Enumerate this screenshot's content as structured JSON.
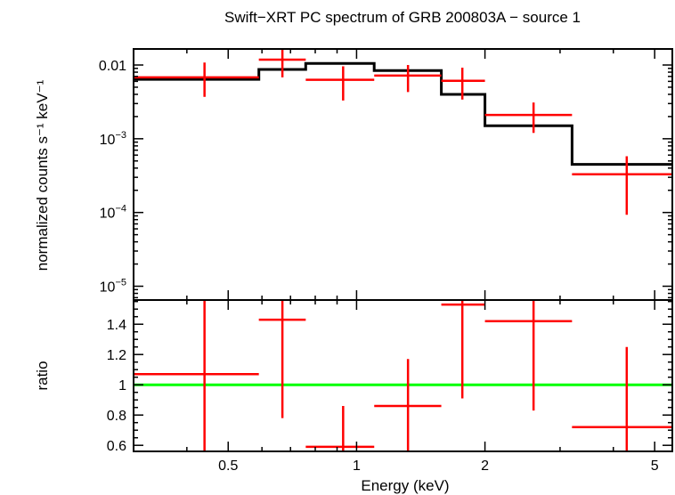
{
  "chart_data": {
    "type": "scatter",
    "title": "Swift−XRT PC spectrum of GRB 200803A − source 1",
    "xlabel": "Energy (keV)",
    "x_scale": "log",
    "xlim": [
      0.3,
      5.5
    ],
    "x_ticks": [
      {
        "value": 0.5,
        "label": "0.5"
      },
      {
        "value": 1,
        "label": "1"
      },
      {
        "value": 2,
        "label": "2"
      },
      {
        "value": 5,
        "label": "5"
      }
    ],
    "panels": [
      {
        "name": "spectrum",
        "ylabel": "normalized counts s⁻¹ keV⁻¹",
        "y_scale": "log",
        "ylim": [
          6.5e-06,
          0.0165
        ],
        "y_ticks": [
          {
            "value": 0.01,
            "label": "0.01"
          },
          {
            "value": 0.001,
            "base": "10",
            "exp": "−3"
          },
          {
            "value": 0.0001,
            "base": "10",
            "exp": "−4"
          },
          {
            "value": 1e-05,
            "base": "10",
            "exp": "−5"
          }
        ],
        "data": [
          {
            "xlo": 0.3,
            "xhi": 0.59,
            "x": 0.44,
            "y": 0.0068,
            "ylo": 0.0037,
            "yhi": 0.0108
          },
          {
            "xlo": 0.59,
            "xhi": 0.76,
            "x": 0.67,
            "y": 0.0118,
            "ylo": 0.0068,
            "yhi": 0.0165
          },
          {
            "xlo": 0.76,
            "xhi": 1.1,
            "x": 0.93,
            "y": 0.0063,
            "ylo": 0.0033,
            "yhi": 0.0096
          },
          {
            "xlo": 1.1,
            "xhi": 1.58,
            "x": 1.32,
            "y": 0.0072,
            "ylo": 0.0043,
            "yhi": 0.01
          },
          {
            "xlo": 1.58,
            "xhi": 2.0,
            "x": 1.77,
            "y": 0.0061,
            "ylo": 0.0034,
            "yhi": 0.0092
          },
          {
            "xlo": 2.0,
            "xhi": 3.2,
            "x": 2.6,
            "y": 0.0021,
            "ylo": 0.0012,
            "yhi": 0.0031
          },
          {
            "xlo": 3.2,
            "xhi": 5.5,
            "x": 4.3,
            "y": 0.00033,
            "ylo": 9.3e-05,
            "yhi": 0.00058
          }
        ],
        "model": [
          {
            "xlo": 0.3,
            "xhi": 0.59,
            "y": 0.0064
          },
          {
            "xlo": 0.59,
            "xhi": 0.76,
            "y": 0.0087
          },
          {
            "xlo": 0.76,
            "xhi": 1.1,
            "y": 0.0105
          },
          {
            "xlo": 1.1,
            "xhi": 1.58,
            "y": 0.0084
          },
          {
            "xlo": 1.58,
            "xhi": 2.0,
            "y": 0.004
          },
          {
            "xlo": 2.0,
            "xhi": 3.2,
            "y": 0.0015
          },
          {
            "xlo": 3.2,
            "xhi": 5.5,
            "y": 0.00045
          }
        ]
      },
      {
        "name": "ratio",
        "ylabel": "ratio",
        "y_scale": "linear",
        "ylim": [
          0.56,
          1.56
        ],
        "y_ticks": [
          {
            "value": 0.6,
            "label": "0.6"
          },
          {
            "value": 0.8,
            "label": "0.8"
          },
          {
            "value": 1,
            "label": "1"
          },
          {
            "value": 1.2,
            "label": "1.2"
          },
          {
            "value": 1.4,
            "label": "1.4"
          }
        ],
        "reference_line": 1,
        "data": [
          {
            "xlo": 0.3,
            "xhi": 0.59,
            "x": 0.44,
            "y": 1.07,
            "ylo": 0.56,
            "yhi": 1.56
          },
          {
            "xlo": 0.59,
            "xhi": 0.76,
            "x": 0.67,
            "y": 1.43,
            "ylo": 0.78,
            "yhi": 1.56
          },
          {
            "xlo": 0.76,
            "xhi": 1.1,
            "x": 0.93,
            "y": 0.59,
            "ylo": 0.56,
            "yhi": 0.86
          },
          {
            "xlo": 1.1,
            "xhi": 1.58,
            "x": 1.32,
            "y": 0.86,
            "ylo": 0.56,
            "yhi": 1.17
          },
          {
            "xlo": 1.58,
            "xhi": 2.0,
            "x": 1.77,
            "y": 1.53,
            "ylo": 0.91,
            "yhi": 1.56
          },
          {
            "xlo": 2.0,
            "xhi": 3.2,
            "x": 2.6,
            "y": 1.42,
            "ylo": 0.83,
            "yhi": 1.56
          },
          {
            "xlo": 3.2,
            "xhi": 5.5,
            "x": 4.3,
            "y": 0.72,
            "ylo": 0.56,
            "yhi": 1.25
          }
        ]
      }
    ],
    "colors": {
      "data": "#ff0000",
      "model": "#000000",
      "reference": "#00ff00",
      "axes": "#000000"
    }
  }
}
